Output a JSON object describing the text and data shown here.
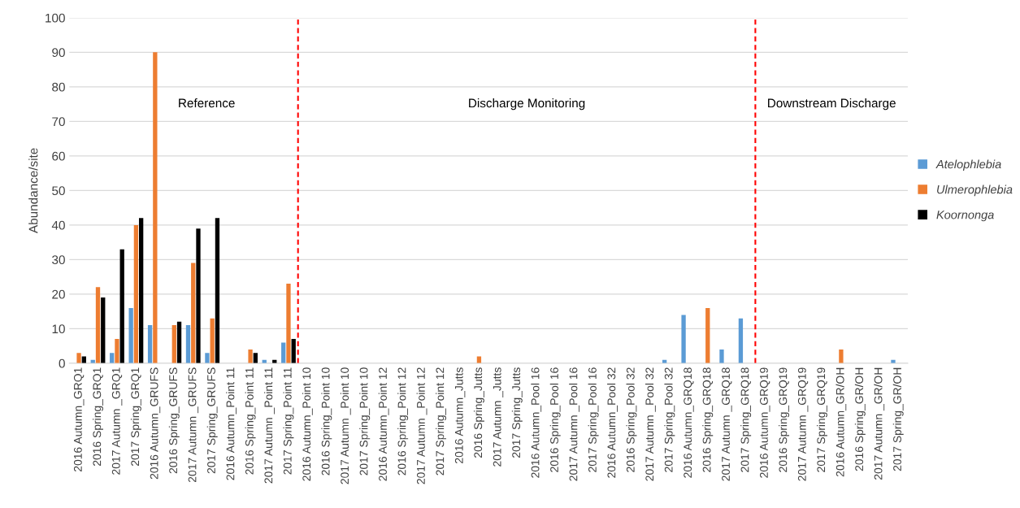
{
  "chart_data": {
    "type": "bar",
    "ylabel": "Abundance/site",
    "categories": [
      "2016 Autumn_GRQ1",
      "2016 Spring_GRQ1",
      "2017 Autumn _GRQ1",
      "2017 Spring_GRQ1",
      "2016 Autumn_GRUFS",
      "2016 Spring_GRUFS",
      "2017 Autumn _GRUFS",
      "2017 Spring_GRUFS",
      "2016 Autumn_Point 11",
      "2016 Spring_Point 11",
      "2017 Autumn _Point 11",
      "2017 Spring_Point 11",
      "2016 Autumn_Point 10",
      "2016 Spring_Point 10",
      "2017 Autumn _Point 10",
      "2017 Spring_Point 10",
      "2016 Autumn_Point 12",
      "2016 Spring_Point 12",
      "2017 Autumn _Point 12",
      "2017 Spring_Point 12",
      "2016 Autumn_Jutts",
      "2016 Spring_Jutts",
      "2017 Autumn _Jutts",
      "2017 Spring_Jutts",
      "2016 Autumn_Pool 16",
      "2016 Spring_Pool 16",
      "2017 Autumn _Pool 16",
      "2017 Spring_Pool 16",
      "2016 Autumn_Pool 32",
      "2016 Spring_Pool 32",
      "2017 Autumn _Pool 32",
      "2017 Spring_Pool 32",
      "2016 Autumn_GRQ18",
      "2016 Spring_GRQ18",
      "2017 Autumn _GRQ18",
      "2017 Spring_GRQ18",
      "2016 Autumn_GRQ19",
      "2016 Spring_GRQ19",
      "2017 Autumn _GRQ19",
      "2017 Spring_GRQ19",
      "2016 Autumn_GR/OH",
      "2016 Spring_GR/OH",
      "2017 Autumn _GR/OH",
      "2017 Spring_GR/OH"
    ],
    "series": [
      {
        "name": "Atelophlebia",
        "color": "#5b9bd5",
        "values": [
          0,
          1,
          3,
          16,
          11,
          0,
          11,
          3,
          0,
          0,
          1,
          6,
          0,
          0,
          0,
          0,
          0,
          0,
          0,
          0,
          0,
          0,
          0,
          0,
          0,
          0,
          0,
          0,
          0,
          0,
          0,
          1,
          14,
          0,
          4,
          13,
          0,
          0,
          0,
          0,
          0,
          0,
          0,
          1
        ]
      },
      {
        "name": "Ulmerophlebia",
        "color": "#ed7d31",
        "values": [
          3,
          22,
          7,
          40,
          90,
          11,
          29,
          13,
          0,
          4,
          0,
          23,
          0,
          0,
          0,
          0,
          0,
          0,
          0,
          0,
          0,
          2,
          0,
          0,
          0,
          0,
          0,
          0,
          0,
          0,
          0,
          0,
          0,
          16,
          0,
          0,
          0,
          0,
          0,
          0,
          4,
          0,
          0,
          0
        ]
      },
      {
        "name": "Koornonga",
        "color": "#000000",
        "values": [
          2,
          19,
          33,
          42,
          0,
          12,
          39,
          42,
          0,
          3,
          1,
          7,
          0,
          0,
          0,
          0,
          0,
          0,
          0,
          0,
          0,
          0,
          0,
          0,
          0,
          0,
          0,
          0,
          0,
          0,
          0,
          0,
          0,
          0,
          0,
          0,
          0,
          0,
          0,
          0,
          0,
          0,
          0,
          0
        ]
      }
    ],
    "ylim": [
      0,
      100
    ],
    "yticks": [
      0,
      10,
      20,
      30,
      40,
      50,
      60,
      70,
      80,
      90,
      100
    ],
    "grid": "y",
    "legend": "right",
    "annotations": [
      "Reference",
      "Discharge Monitoring",
      "Downstream Discharge"
    ]
  }
}
